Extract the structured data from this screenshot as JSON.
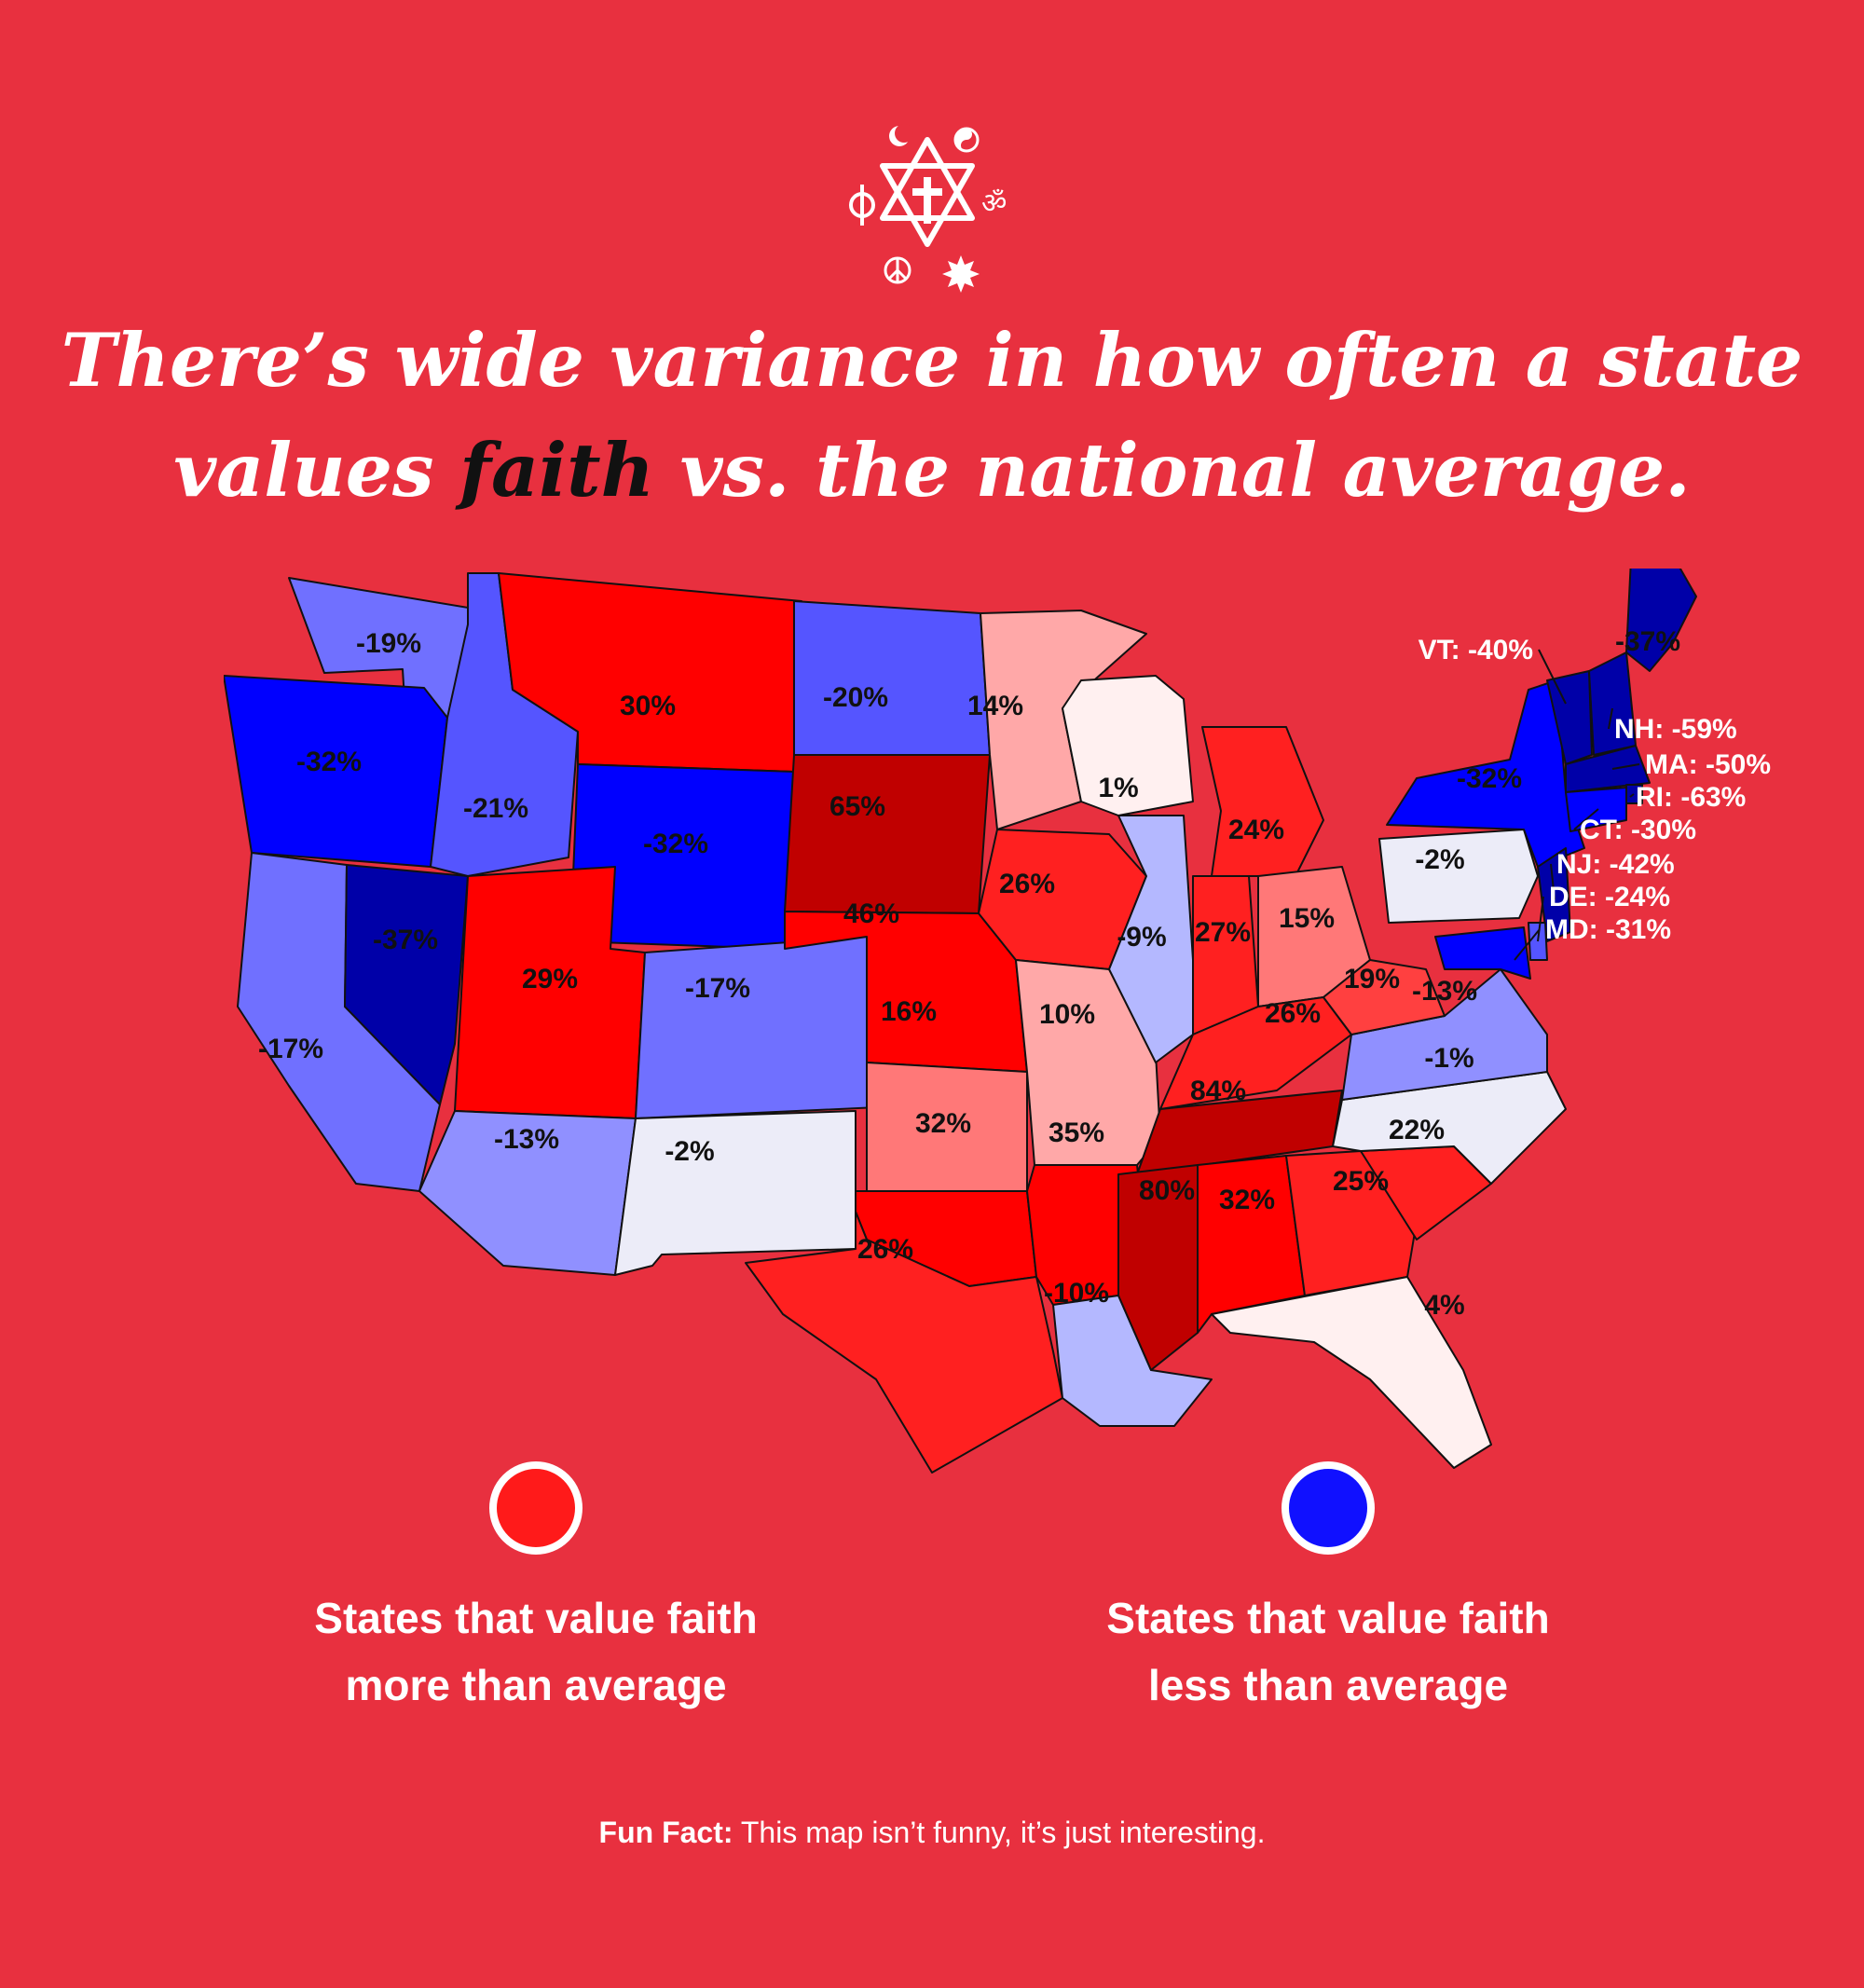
{
  "header": {
    "title_part1": "There’s wide variance in how often a state",
    "title_part2": "values ",
    "title_highlight": "faith",
    "title_part3": " vs. the national average.",
    "emblem_icon": "interfaith-symbols-icon"
  },
  "map": {
    "colors": {
      "more_dark": "#c00000",
      "more_strong": "#ff0000",
      "more": "#ff2020",
      "more_mid": "#ff4040",
      "more_light": "#ff7878",
      "more_pale": "#ffa8a8",
      "more_faint": "#fff0f0",
      "neutral": "#ececf8",
      "less_faint": "#b4b8ff",
      "less_light": "#9090ff",
      "less": "#7070ff",
      "less_mid": "#5555ff",
      "less_strong": "#0000ff",
      "less_dark": "#0000a8"
    },
    "states": [
      {
        "code": "WA",
        "label": "-19%",
        "value": -19
      },
      {
        "code": "OR",
        "label": "-32%",
        "value": -32
      },
      {
        "code": "CA",
        "label": "-17%",
        "value": -17
      },
      {
        "code": "NV",
        "label": "-37%",
        "value": -37
      },
      {
        "code": "ID",
        "label": "-21%",
        "value": -21
      },
      {
        "code": "MT",
        "label": "30%",
        "value": 30
      },
      {
        "code": "WY",
        "label": "-32%",
        "value": -32
      },
      {
        "code": "UT",
        "label": "29%",
        "value": 29
      },
      {
        "code": "AZ",
        "label": "-13%",
        "value": -13
      },
      {
        "code": "CO",
        "label": "-17%",
        "value": -17
      },
      {
        "code": "NM",
        "label": "-2%",
        "value": -2
      },
      {
        "code": "ND",
        "label": "-20%",
        "value": -20
      },
      {
        "code": "SD",
        "label": "65%",
        "value": 65
      },
      {
        "code": "NE",
        "label": "46%",
        "value": 46
      },
      {
        "code": "KS",
        "label": "16%",
        "value": 16
      },
      {
        "code": "OK",
        "label": "32%",
        "value": 32
      },
      {
        "code": "TX",
        "label": "26%",
        "value": 26
      },
      {
        "code": "MN",
        "label": "14%",
        "value": 14
      },
      {
        "code": "IA",
        "label": "26%",
        "value": 26
      },
      {
        "code": "MO",
        "label": "10%",
        "value": 10
      },
      {
        "code": "AR",
        "label": "35%",
        "value": 35
      },
      {
        "code": "LA",
        "label": "-10%",
        "value": -10
      },
      {
        "code": "WI",
        "label": "1%",
        "value": 1
      },
      {
        "code": "IL",
        "label": "-9%",
        "value": -9
      },
      {
        "code": "MI",
        "label": "24%",
        "value": 24
      },
      {
        "code": "IN",
        "label": "27%",
        "value": 27
      },
      {
        "code": "OH",
        "label": "15%",
        "value": 15
      },
      {
        "code": "KY",
        "label": "26%",
        "value": 26
      },
      {
        "code": "TN",
        "label": "84%",
        "value": 84
      },
      {
        "code": "MS",
        "label": "80%",
        "value": 80
      },
      {
        "code": "AL",
        "label": "32%",
        "value": 32
      },
      {
        "code": "GA",
        "label": "25%",
        "value": 25
      },
      {
        "code": "FL",
        "label": "4%",
        "value": 4
      },
      {
        "code": "SC",
        "label": "22%",
        "value": 22
      },
      {
        "code": "NC",
        "label": "-1%",
        "value": -1
      },
      {
        "code": "VA",
        "label": "-13%",
        "value": -13
      },
      {
        "code": "WV",
        "label": "19%",
        "value": 19
      },
      {
        "code": "PA",
        "label": "-2%",
        "value": -2
      },
      {
        "code": "NY",
        "label": "-32%",
        "value": -32
      },
      {
        "code": "ME",
        "label": "-37%",
        "value": -37
      },
      {
        "code": "VT",
        "label": "VT: -40%",
        "value": -40
      },
      {
        "code": "NH",
        "label": "NH: -59%",
        "value": -59
      },
      {
        "code": "MA",
        "label": "MA: -50%",
        "value": -50
      },
      {
        "code": "RI",
        "label": "RI: -63%",
        "value": -63
      },
      {
        "code": "CT",
        "label": "CT: -30%",
        "value": -30
      },
      {
        "code": "NJ",
        "label": "NJ: -42%",
        "value": -42
      },
      {
        "code": "DE",
        "label": "DE: -24%",
        "value": -24
      },
      {
        "code": "MD",
        "label": "MD: -31%",
        "value": -31
      }
    ]
  },
  "legend": {
    "more": {
      "line1": "States that value faith",
      "line2": "more than average",
      "color": "#ff1a1a"
    },
    "less": {
      "line1": "States that value faith",
      "line2": "less than average",
      "color": "#1010ff"
    }
  },
  "footer": {
    "fun_fact_label": "Fun Fact:",
    "fun_fact_text": " This map isn’t funny, it’s just interesting."
  }
}
